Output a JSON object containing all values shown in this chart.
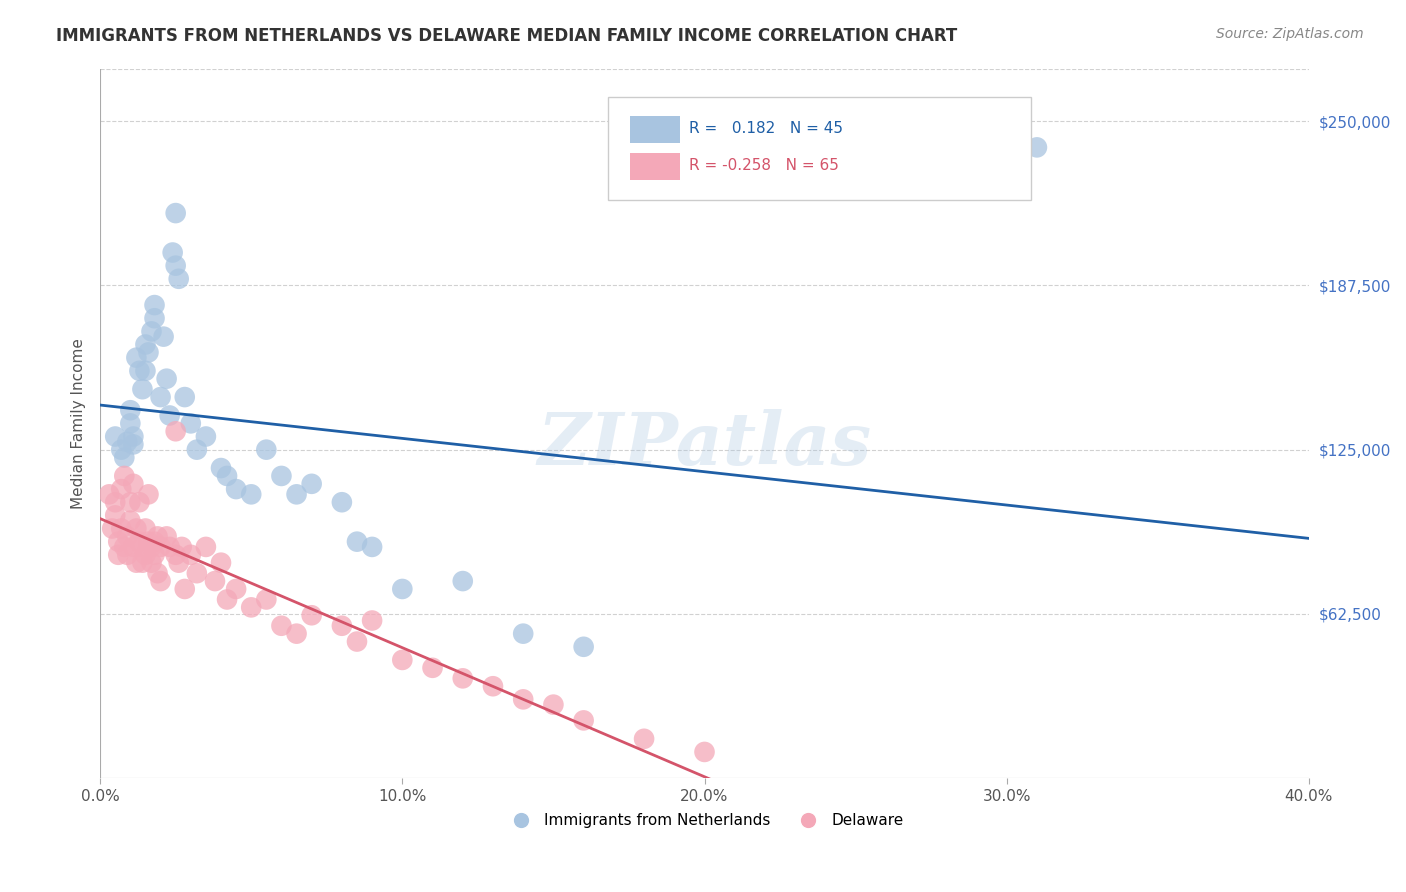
{
  "title": "IMMIGRANTS FROM NETHERLANDS VS DELAWARE MEDIAN FAMILY INCOME CORRELATION CHART",
  "source": "Source: ZipAtlas.com",
  "ylabel": "Median Family Income",
  "xlim": [
    0.0,
    0.4
  ],
  "ylim": [
    0,
    270000
  ],
  "xtick_labels": [
    "0.0%",
    "10.0%",
    "20.0%",
    "30.0%",
    "40.0%"
  ],
  "xtick_positions": [
    0.0,
    0.1,
    0.2,
    0.3,
    0.4
  ],
  "ytick_right_labels": [
    "$250,000",
    "$187,500",
    "$125,000",
    "$62,500"
  ],
  "ytick_right_positions": [
    250000,
    187500,
    125000,
    62500
  ],
  "blue_color": "#a8c4e0",
  "pink_color": "#f4a8b8",
  "blue_line_color": "#1f5fa6",
  "pink_line_color": "#d4546a",
  "watermark": "ZIPatlas",
  "blue_scatter_x": [
    0.005,
    0.007,
    0.008,
    0.009,
    0.01,
    0.01,
    0.011,
    0.011,
    0.012,
    0.013,
    0.014,
    0.015,
    0.015,
    0.016,
    0.017,
    0.018,
    0.018,
    0.02,
    0.021,
    0.022,
    0.023,
    0.024,
    0.025,
    0.025,
    0.026,
    0.028,
    0.03,
    0.032,
    0.035,
    0.04,
    0.042,
    0.045,
    0.05,
    0.055,
    0.06,
    0.065,
    0.07,
    0.08,
    0.085,
    0.09,
    0.1,
    0.12,
    0.14,
    0.16,
    0.31
  ],
  "blue_scatter_y": [
    130000,
    125000,
    122000,
    128000,
    135000,
    140000,
    130000,
    127000,
    160000,
    155000,
    148000,
    165000,
    155000,
    162000,
    170000,
    175000,
    180000,
    145000,
    168000,
    152000,
    138000,
    200000,
    195000,
    215000,
    190000,
    145000,
    135000,
    125000,
    130000,
    118000,
    115000,
    110000,
    108000,
    125000,
    115000,
    108000,
    112000,
    105000,
    90000,
    88000,
    72000,
    75000,
    55000,
    50000,
    240000
  ],
  "pink_scatter_x": [
    0.003,
    0.004,
    0.005,
    0.005,
    0.006,
    0.006,
    0.007,
    0.007,
    0.008,
    0.008,
    0.009,
    0.009,
    0.01,
    0.01,
    0.011,
    0.011,
    0.012,
    0.012,
    0.013,
    0.013,
    0.014,
    0.014,
    0.015,
    0.015,
    0.016,
    0.016,
    0.017,
    0.017,
    0.018,
    0.018,
    0.019,
    0.019,
    0.02,
    0.02,
    0.022,
    0.023,
    0.025,
    0.025,
    0.026,
    0.027,
    0.028,
    0.03,
    0.032,
    0.035,
    0.038,
    0.04,
    0.042,
    0.045,
    0.05,
    0.055,
    0.06,
    0.065,
    0.07,
    0.08,
    0.085,
    0.09,
    0.1,
    0.11,
    0.12,
    0.13,
    0.14,
    0.15,
    0.16,
    0.18,
    0.2
  ],
  "pink_scatter_y": [
    108000,
    95000,
    100000,
    105000,
    90000,
    85000,
    110000,
    95000,
    115000,
    88000,
    92000,
    85000,
    105000,
    98000,
    112000,
    88000,
    95000,
    82000,
    105000,
    90000,
    88000,
    82000,
    95000,
    85000,
    108000,
    90000,
    88000,
    82000,
    85000,
    90000,
    78000,
    92000,
    88000,
    75000,
    92000,
    88000,
    132000,
    85000,
    82000,
    88000,
    72000,
    85000,
    78000,
    88000,
    75000,
    82000,
    68000,
    72000,
    65000,
    68000,
    58000,
    55000,
    62000,
    58000,
    52000,
    60000,
    45000,
    42000,
    38000,
    35000,
    30000,
    28000,
    22000,
    15000,
    10000
  ]
}
